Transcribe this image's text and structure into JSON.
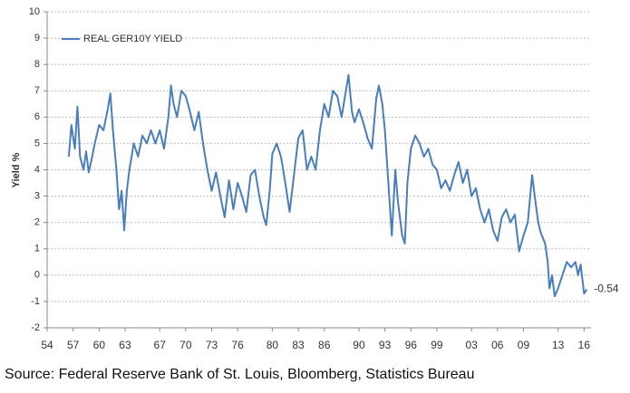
{
  "chart_data": {
    "type": "line",
    "y_label": "Yield %",
    "source": "Source: Federal Reserve Bank of St. Louis, Bloomberg, Statistics Bureau",
    "annotation": "-0.54",
    "xlim": [
      1954,
      2016.8
    ],
    "xticks": [
      {
        "value": 1954,
        "label": "54"
      },
      {
        "value": 1957,
        "label": "57"
      },
      {
        "value": 1960,
        "label": "60"
      },
      {
        "value": 1963,
        "label": "63"
      },
      {
        "value": 1967,
        "label": "67"
      },
      {
        "value": 1970,
        "label": "70"
      },
      {
        "value": 1973,
        "label": "73"
      },
      {
        "value": 1976,
        "label": "76"
      },
      {
        "value": 1980,
        "label": "80"
      },
      {
        "value": 1983,
        "label": "83"
      },
      {
        "value": 1986,
        "label": "86"
      },
      {
        "value": 1990,
        "label": "90"
      },
      {
        "value": 1993,
        "label": "93"
      },
      {
        "value": 1996,
        "label": "96"
      },
      {
        "value": 1999,
        "label": "99"
      },
      {
        "value": 2003,
        "label": "03"
      },
      {
        "value": 2006,
        "label": "06"
      },
      {
        "value": 2009,
        "label": "09"
      },
      {
        "value": 2013,
        "label": "13"
      },
      {
        "value": 2016,
        "label": "16"
      }
    ],
    "ylim": [
      -2,
      10
    ],
    "yticks": [
      -2,
      -1,
      0,
      1,
      2,
      3,
      4,
      5,
      6,
      7,
      8,
      9,
      10
    ],
    "grid": true,
    "legend": "top-left",
    "x": [
      1956.5,
      1956.8,
      1957.2,
      1957.5,
      1957.8,
      1958.2,
      1958.5,
      1958.8,
      1959.2,
      1959.5,
      1960,
      1960.5,
      1961,
      1961.3,
      1961.6,
      1962,
      1962.3,
      1962.6,
      1962.9,
      1963.2,
      1963.5,
      1964,
      1964.5,
      1965,
      1965.5,
      1966,
      1966.5,
      1967,
      1967.5,
      1968,
      1968.3,
      1968.6,
      1969,
      1969.5,
      1970,
      1970.5,
      1971,
      1971.5,
      1972,
      1972.5,
      1973,
      1973.5,
      1974,
      1974.5,
      1975,
      1975.5,
      1976,
      1976.5,
      1977,
      1977.5,
      1978,
      1978.5,
      1979,
      1979.3,
      1979.7,
      1980,
      1980.5,
      1981,
      1981.5,
      1982,
      1982.5,
      1983,
      1983.5,
      1984,
      1984.5,
      1985,
      1985.5,
      1986,
      1986.5,
      1987,
      1987.5,
      1988,
      1988.5,
      1988.8,
      1989.2,
      1989.5,
      1990,
      1990.5,
      1991,
      1991.5,
      1992,
      1992.3,
      1992.7,
      1993,
      1993.5,
      1993.8,
      1994.2,
      1994.5,
      1995,
      1995.3,
      1995.6,
      1996,
      1996.5,
      1997,
      1997.5,
      1998,
      1998.5,
      1999,
      1999.5,
      2000,
      2000.5,
      2001,
      2001.5,
      2002,
      2002.5,
      2003,
      2003.5,
      2004,
      2004.5,
      2005,
      2005.5,
      2006,
      2006.5,
      2007,
      2007.5,
      2008,
      2008.5,
      2009,
      2009.5,
      2010,
      2010.3,
      2010.7,
      2011,
      2011.5,
      2011.8,
      2012,
      2012.3,
      2012.6,
      2013,
      2013.5,
      2014,
      2014.5,
      2015,
      2015.3,
      2015.6,
      2016,
      2016.3
    ],
    "series": [
      {
        "name": "REAL GER10Y YIELD",
        "color": "#4a7ebb",
        "values": [
          4.5,
          5.7,
          4.8,
          6.4,
          4.5,
          4.0,
          4.7,
          3.9,
          4.5,
          5.0,
          5.7,
          5.5,
          6.3,
          6.9,
          5.5,
          4.0,
          2.5,
          3.2,
          1.7,
          3.2,
          4.0,
          5.0,
          4.5,
          5.3,
          5.0,
          5.5,
          5.0,
          5.5,
          4.8,
          6.0,
          7.2,
          6.5,
          6.0,
          7.0,
          6.8,
          6.2,
          5.5,
          6.2,
          5.0,
          4.0,
          3.2,
          3.9,
          3.0,
          2.2,
          3.6,
          2.5,
          3.5,
          3.0,
          2.4,
          3.8,
          4.0,
          3.0,
          2.2,
          1.9,
          3.2,
          4.6,
          5.0,
          4.5,
          3.5,
          2.4,
          3.8,
          5.2,
          5.5,
          4.0,
          4.5,
          4.0,
          5.5,
          6.5,
          6.0,
          7.0,
          6.8,
          6.0,
          7.0,
          7.6,
          6.2,
          5.8,
          6.3,
          5.8,
          5.2,
          4.8,
          6.7,
          7.2,
          6.5,
          5.5,
          3.0,
          1.5,
          4.0,
          2.8,
          1.5,
          1.2,
          3.5,
          4.8,
          5.3,
          5.0,
          4.5,
          4.8,
          4.2,
          4.0,
          3.3,
          3.6,
          3.2,
          3.8,
          4.3,
          3.5,
          4.0,
          3.0,
          3.3,
          2.5,
          2.0,
          2.5,
          1.7,
          1.3,
          2.2,
          2.5,
          2.0,
          2.3,
          0.9,
          1.5,
          2.0,
          3.8,
          3.0,
          2.0,
          1.6,
          1.2,
          0.5,
          -0.5,
          0.0,
          -0.8,
          -0.5,
          0.0,
          0.5,
          0.3,
          0.5,
          0.0,
          0.4,
          -0.7,
          -0.54
        ]
      }
    ]
  }
}
